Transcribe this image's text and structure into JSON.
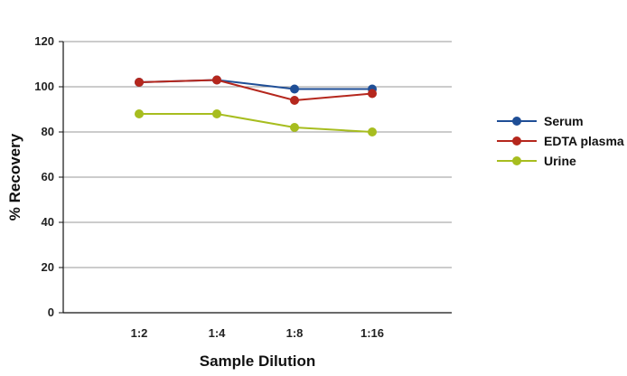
{
  "chart_data": {
    "type": "line",
    "title": "",
    "xlabel": "Sample Dilution",
    "ylabel": "% Recovery",
    "categories": [
      "1:2",
      "1:4",
      "1:8",
      "1:16"
    ],
    "ylim": [
      0,
      120
    ],
    "yticks": [
      "0",
      "20",
      "40",
      "60",
      "80",
      "100",
      "120"
    ],
    "grid": true,
    "legend_position": "right",
    "series": [
      {
        "name": "Serum",
        "values": [
          102,
          103,
          99,
          99
        ],
        "color": "#1f4e96"
      },
      {
        "name": "EDTA plasma",
        "values": [
          102,
          103,
          94,
          97
        ],
        "color": "#b5271d"
      },
      {
        "name": "Urine",
        "values": [
          88,
          88,
          82,
          80
        ],
        "color": "#a7bd1f"
      }
    ]
  }
}
